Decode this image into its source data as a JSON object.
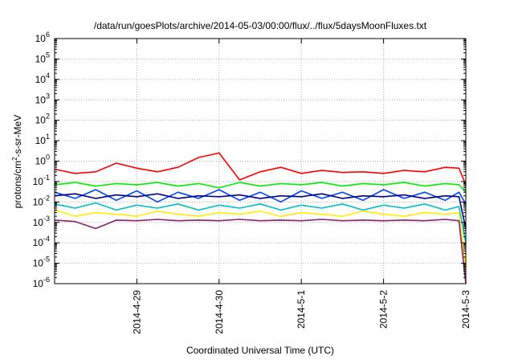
{
  "chart_data": {
    "type": "line",
    "title": "/data/run/goesPlots/archive/2014-05-03/00:00/flux/../flux/5daysMoonFluxes.txt",
    "xlabel": "Coordinated Universal Time (UTC)",
    "ylabel": {
      "base": "protons/cm",
      "sup": "2",
      "rest": "-s-sr-MeV"
    },
    "x_axis": {
      "type": "date",
      "range": [
        "2014-04-28",
        "2014-05-03"
      ],
      "ticks": [
        {
          "label": "2014-4-29",
          "value": "2014-04-29"
        },
        {
          "label": "2014-4-30",
          "value": "2014-04-30"
        },
        {
          "label": "2014-5-1",
          "value": "2014-05-01"
        },
        {
          "label": "2014-5-2",
          "value": "2014-05-02"
        },
        {
          "label": "2014-5-3",
          "value": "2014-05-03"
        }
      ]
    },
    "y_axis": {
      "scale": "log",
      "range": [
        1e-06,
        1000000.0
      ],
      "ticks": [
        {
          "value": 1e-06,
          "base": "10",
          "exp": "-6"
        },
        {
          "value": 1e-05,
          "base": "10",
          "exp": "-5"
        },
        {
          "value": 0.0001,
          "base": "10",
          "exp": "-4"
        },
        {
          "value": 0.001,
          "base": "10",
          "exp": "-3"
        },
        {
          "value": 0.01,
          "base": "10",
          "exp": "-2"
        },
        {
          "value": 0.1,
          "base": "10",
          "exp": "-1"
        },
        {
          "value": 1,
          "base": "10",
          "exp": "0"
        },
        {
          "value": 10,
          "base": "10",
          "exp": "1"
        },
        {
          "value": 100,
          "base": "10",
          "exp": "2"
        },
        {
          "value": 1000,
          "base": "10",
          "exp": "3"
        },
        {
          "value": 10000,
          "base": "10",
          "exp": "4"
        },
        {
          "value": 100000,
          "base": "10",
          "exp": "5"
        },
        {
          "value": 1000000,
          "base": "10",
          "exp": "6"
        }
      ]
    },
    "grid": true,
    "series": [
      {
        "color": "#ff0000",
        "x": [
          "2014-04-28",
          "2014-04-28T06:00",
          "2014-04-28T12:00",
          "2014-04-28T18:00",
          "2014-04-29",
          "2014-04-29T06:00",
          "2014-04-29T12:00",
          "2014-04-29T18:00",
          "2014-04-30",
          "2014-04-30T06:00",
          "2014-04-30T12:00",
          "2014-04-30T18:00",
          "2014-05-01",
          "2014-05-01T06:00",
          "2014-05-01T12:00",
          "2014-05-01T18:00",
          "2014-05-02",
          "2014-05-02T06:00",
          "2014-05-02T12:00",
          "2014-05-02T18:00",
          "2014-05-02T22:00",
          "2014-05-03"
        ],
        "y": [
          0.4,
          0.25,
          0.3,
          0.8,
          0.45,
          0.3,
          0.5,
          1.5,
          2.5,
          0.12,
          0.3,
          0.5,
          0.25,
          0.35,
          0.28,
          0.3,
          0.25,
          0.35,
          0.3,
          0.5,
          0.45,
          0.07
        ]
      },
      {
        "color": "#00ee00",
        "x": [
          "2014-04-28",
          "2014-04-28T06:00",
          "2014-04-28T12:00",
          "2014-04-28T18:00",
          "2014-04-29",
          "2014-04-29T06:00",
          "2014-04-29T12:00",
          "2014-04-29T18:00",
          "2014-04-30",
          "2014-04-30T06:00",
          "2014-04-30T12:00",
          "2014-04-30T18:00",
          "2014-05-01",
          "2014-05-01T06:00",
          "2014-05-01T12:00",
          "2014-05-01T18:00",
          "2014-05-02",
          "2014-05-02T06:00",
          "2014-05-02T12:00",
          "2014-05-02T18:00",
          "2014-05-02T22:00",
          "2014-05-03"
        ],
        "y": [
          0.07,
          0.09,
          0.06,
          0.08,
          0.07,
          0.09,
          0.06,
          0.08,
          0.05,
          0.09,
          0.06,
          0.08,
          0.07,
          0.09,
          0.06,
          0.08,
          0.07,
          0.09,
          0.06,
          0.08,
          0.07,
          0.03
        ]
      },
      {
        "color": "#0044ff",
        "x": [
          "2014-04-28",
          "2014-04-28T06:00",
          "2014-04-28T12:00",
          "2014-04-28T18:00",
          "2014-04-29",
          "2014-04-29T06:00",
          "2014-04-29T12:00",
          "2014-04-29T18:00",
          "2014-04-30",
          "2014-04-30T06:00",
          "2014-04-30T12:00",
          "2014-04-30T18:00",
          "2014-05-01",
          "2014-05-01T06:00",
          "2014-05-01T12:00",
          "2014-05-01T18:00",
          "2014-05-02",
          "2014-05-02T06:00",
          "2014-05-02T12:00",
          "2014-05-02T18:00",
          "2014-05-02T22:00",
          "2014-05-03"
        ],
        "y": [
          0.03,
          0.015,
          0.04,
          0.012,
          0.035,
          0.01,
          0.03,
          0.015,
          0.04,
          0.012,
          0.03,
          0.01,
          0.035,
          0.015,
          0.03,
          0.012,
          0.04,
          0.015,
          0.03,
          0.012,
          0.03,
          0.008
        ]
      },
      {
        "color": "#00008b",
        "x": [
          "2014-04-28",
          "2014-04-28T06:00",
          "2014-04-28T12:00",
          "2014-04-28T18:00",
          "2014-04-29",
          "2014-04-29T06:00",
          "2014-04-29T12:00",
          "2014-04-29T18:00",
          "2014-04-30",
          "2014-04-30T06:00",
          "2014-04-30T12:00",
          "2014-04-30T18:00",
          "2014-05-01",
          "2014-05-01T06:00",
          "2014-05-01T12:00",
          "2014-05-01T18:00",
          "2014-05-02",
          "2014-05-02T06:00",
          "2014-05-02T12:00",
          "2014-05-02T18:00",
          "2014-05-02T22:00",
          "2014-05-03"
        ],
        "y": [
          0.02,
          0.025,
          0.015,
          0.022,
          0.018,
          0.025,
          0.015,
          0.02,
          0.018,
          0.022,
          0.015,
          0.02,
          0.018,
          0.025,
          0.015,
          0.02,
          0.018,
          0.022,
          0.015,
          0.02,
          0.018,
          0.0005
        ]
      },
      {
        "color": "#00bfbf",
        "x": [
          "2014-04-28",
          "2014-04-28T06:00",
          "2014-04-28T12:00",
          "2014-04-28T18:00",
          "2014-04-29",
          "2014-04-29T06:00",
          "2014-04-29T12:00",
          "2014-04-29T18:00",
          "2014-04-30",
          "2014-04-30T06:00",
          "2014-04-30T12:00",
          "2014-04-30T18:00",
          "2014-05-01",
          "2014-05-01T06:00",
          "2014-05-01T12:00",
          "2014-05-01T18:00",
          "2014-05-02",
          "2014-05-02T06:00",
          "2014-05-02T12:00",
          "2014-05-02T18:00",
          "2014-05-02T22:00",
          "2014-05-03"
        ],
        "y": [
          0.008,
          0.005,
          0.009,
          0.004,
          0.007,
          0.005,
          0.008,
          0.004,
          0.007,
          0.005,
          0.008,
          0.004,
          0.007,
          0.005,
          0.008,
          0.004,
          0.007,
          0.005,
          0.008,
          0.004,
          0.006,
          0.0001
        ]
      },
      {
        "color": "#ffee00",
        "x": [
          "2014-04-28",
          "2014-04-28T06:00",
          "2014-04-28T12:00",
          "2014-04-28T18:00",
          "2014-04-29",
          "2014-04-29T06:00",
          "2014-04-29T12:00",
          "2014-04-29T18:00",
          "2014-04-30",
          "2014-04-30T06:00",
          "2014-04-30T12:00",
          "2014-04-30T18:00",
          "2014-05-01",
          "2014-05-01T06:00",
          "2014-05-01T12:00",
          "2014-05-01T18:00",
          "2014-05-02",
          "2014-05-02T06:00",
          "2014-05-02T12:00",
          "2014-05-02T18:00",
          "2014-05-02T22:00",
          "2014-05-03"
        ],
        "y": [
          0.004,
          0.002,
          0.003,
          0.0025,
          0.002,
          0.0035,
          0.0025,
          0.002,
          0.003,
          0.0025,
          0.0035,
          0.002,
          0.003,
          0.0025,
          0.002,
          0.0035,
          0.0025,
          0.002,
          0.003,
          0.0025,
          0.003,
          5e-06
        ]
      },
      {
        "color": "#8b2070",
        "x": [
          "2014-04-28",
          "2014-04-28T06:00",
          "2014-04-28T12:00",
          "2014-04-28T18:00",
          "2014-04-29",
          "2014-04-29T06:00",
          "2014-04-29T12:00",
          "2014-04-29T18:00",
          "2014-04-30",
          "2014-04-30T06:00",
          "2014-04-30T12:00",
          "2014-04-30T18:00",
          "2014-05-01",
          "2014-05-01T06:00",
          "2014-05-01T12:00",
          "2014-05-01T18:00",
          "2014-05-02",
          "2014-05-02T06:00",
          "2014-05-02T12:00",
          "2014-05-02T18:00",
          "2014-05-02T22:00",
          "2014-05-03"
        ],
        "y": [
          0.0013,
          0.0011,
          0.0005,
          0.0013,
          0.0012,
          0.0014,
          0.0012,
          0.0013,
          0.0012,
          0.0014,
          0.0012,
          0.0013,
          0.0012,
          0.0014,
          0.0012,
          0.0013,
          0.0012,
          0.0013,
          0.0012,
          0.0014,
          0.0012,
          1e-06
        ]
      }
    ]
  }
}
